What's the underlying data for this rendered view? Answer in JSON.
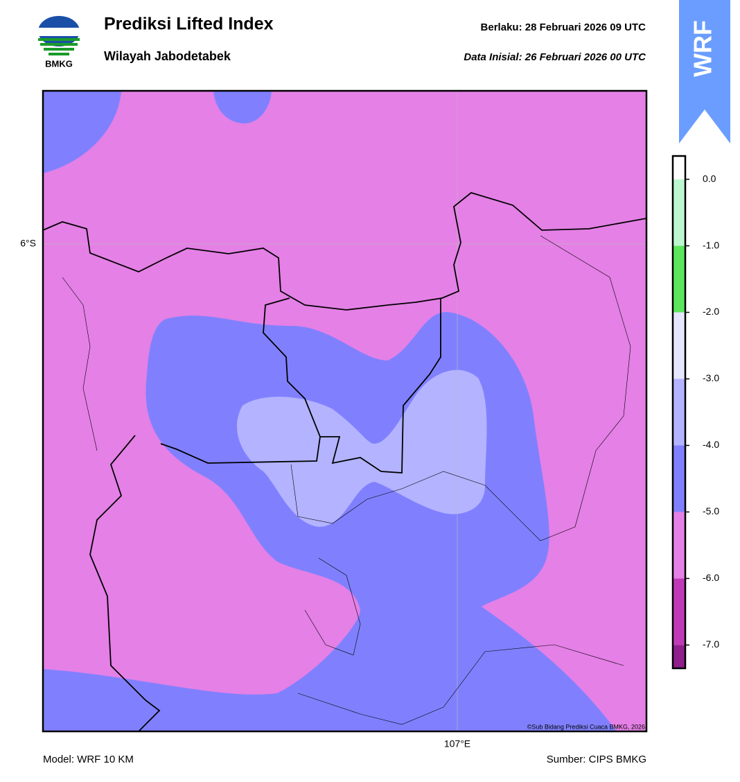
{
  "header": {
    "logo_text": "BMKG",
    "title": "Prediksi Lifted Index",
    "subtitle": "Wilayah Jabodetabek",
    "valid": "Berlaku:  28 Februari 2026 09 UTC",
    "init": "Data Inisial:  26 Februari 2026 00 UTC",
    "badge": "WRF"
  },
  "map": {
    "lat_label": "6°S",
    "lon_label": "107°E",
    "copyright": "©Sub Bidang Prediksi Cuaca BMKG, 2026"
  },
  "colorbar": {
    "lim": [
      -7.35,
      0.35
    ],
    "levels": [
      -7,
      -6,
      -5,
      -4,
      -3,
      -2,
      -1,
      0
    ],
    "colors": [
      "#8e1f8c",
      "#c03ab8",
      "#e480e6",
      "#8080ff",
      "#b3b3ff",
      "#e6e6ff",
      "#5ce65c",
      "#bdf7cf",
      "#ffffff"
    ],
    "ticks": [
      {
        "value": 0,
        "label": "0.0"
      },
      {
        "value": -1,
        "label": "-1.0"
      },
      {
        "value": -2,
        "label": "-2.0"
      },
      {
        "value": -3,
        "label": "-3.0"
      },
      {
        "value": -4,
        "label": "-4.0"
      },
      {
        "value": -5,
        "label": "-5.0"
      },
      {
        "value": -6,
        "label": "-6.0"
      },
      {
        "value": -7,
        "label": "-7.0"
      }
    ]
  },
  "footer": {
    "model": "Model: WRF 10 KM",
    "source": "Sumber: CIPS BMKG"
  }
}
